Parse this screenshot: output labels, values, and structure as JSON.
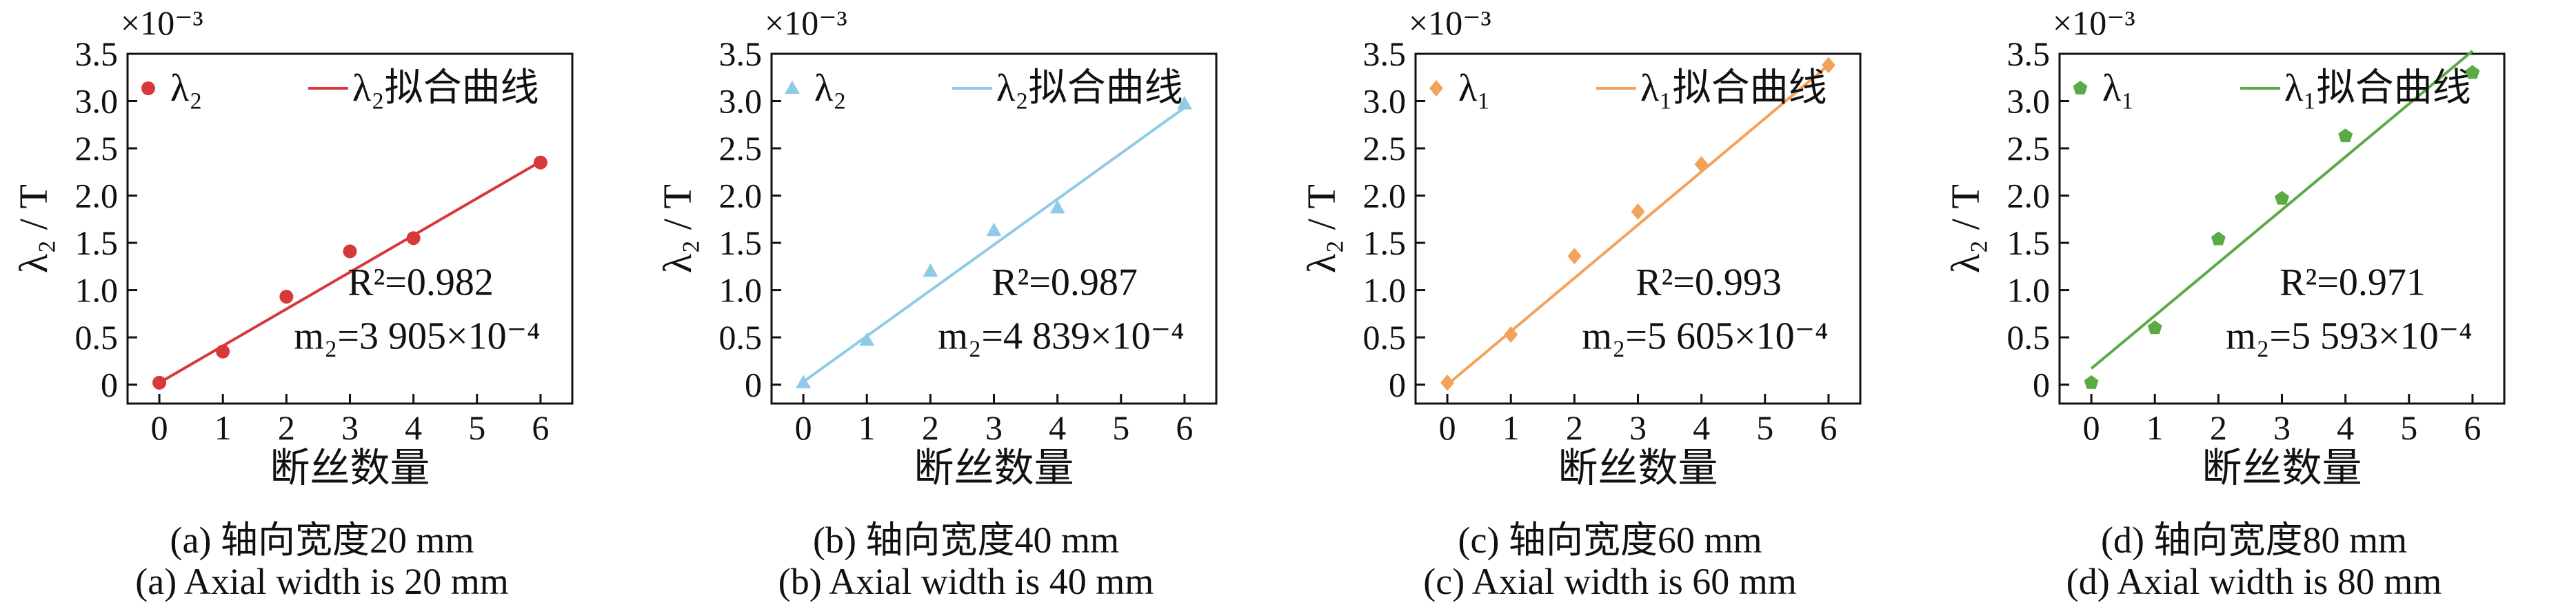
{
  "chart_data": [
    {
      "type": "scatter",
      "panel_id": "a",
      "color": "#d9383a",
      "marker": "circle",
      "x_exponent_label": "×10⁻³",
      "xlabel": "断丝数量",
      "ylabel": "λ₂ / T",
      "xlim": [
        -0.5,
        6.5
      ],
      "ylim": [
        -0.2,
        3.5
      ],
      "xticks": [
        "0",
        "1",
        "2",
        "3",
        "4",
        "5",
        "6"
      ],
      "yticks": [
        "0",
        "0.5",
        "1.0",
        "1.5",
        "2.0",
        "2.5",
        "3.0",
        "3.5"
      ],
      "legend": {
        "point_label": "λ₂",
        "line_label": "λ₂拟合曲线",
        "position": "top"
      },
      "points": {
        "x": [
          0,
          1,
          2,
          3,
          4,
          6
        ],
        "y": [
          0.02,
          0.35,
          0.93,
          1.41,
          1.55,
          2.35
        ]
      },
      "fit_line": {
        "x": [
          0,
          6
        ],
        "y": [
          0.02,
          2.36
        ]
      },
      "annotation_r2": "R²=0.982",
      "annotation_m": "m₂=3 905×10⁻⁴",
      "caption_zh": "(a)  轴向宽度20 mm",
      "caption_en": "(a)  Axial width is 20 mm"
    },
    {
      "type": "scatter",
      "panel_id": "b",
      "color": "#8fcbe6",
      "marker": "triangle",
      "x_exponent_label": "×10⁻³",
      "xlabel": "断丝数量",
      "ylabel": "λ₂ / T",
      "xlim": [
        -0.5,
        6.5
      ],
      "ylim": [
        -0.2,
        3.5
      ],
      "xticks": [
        "0",
        "1",
        "2",
        "3",
        "4",
        "5",
        "6"
      ],
      "yticks": [
        "0",
        "0.5",
        "1.0",
        "1.5",
        "2.0",
        "2.5",
        "3.0",
        "3.5"
      ],
      "legend": {
        "point_label": "λ₂",
        "line_label": "λ₂拟合曲线",
        "position": "top"
      },
      "points": {
        "x": [
          0,
          1,
          2,
          3,
          4,
          6
        ],
        "y": [
          0.02,
          0.47,
          1.2,
          1.63,
          1.87,
          2.97
        ]
      },
      "fit_line": {
        "x": [
          0,
          6
        ],
        "y": [
          0.03,
          2.93
        ]
      },
      "annotation_r2": "R²=0.987",
      "annotation_m": "m₂=4 839×10⁻⁴",
      "caption_zh": "(b)  轴向宽度40 mm",
      "caption_en": "(b)  Axial width is 40 mm"
    },
    {
      "type": "scatter",
      "panel_id": "c",
      "color": "#f4a259",
      "marker": "diamond",
      "x_exponent_label": "×10⁻³",
      "xlabel": "断丝数量",
      "ylabel": "λ₂ / T",
      "xlim": [
        -0.5,
        6.5
      ],
      "ylim": [
        -0.2,
        3.5
      ],
      "xticks": [
        "0",
        "1",
        "2",
        "3",
        "4",
        "5",
        "6"
      ],
      "yticks": [
        "0",
        "0.5",
        "1.0",
        "1.5",
        "2.0",
        "2.5",
        "3.0",
        "3.5"
      ],
      "legend": {
        "point_label": "λ₁",
        "line_label": "λ₁拟合曲线",
        "position": "top"
      },
      "points": {
        "x": [
          0,
          1,
          2,
          3,
          4,
          6
        ],
        "y": [
          0.02,
          0.53,
          1.36,
          1.83,
          2.33,
          3.38
        ]
      },
      "fit_line": {
        "x": [
          0,
          6
        ],
        "y": [
          0.0,
          3.38
        ]
      },
      "annotation_r2": "R²=0.993",
      "annotation_m": "m₂=5 605×10⁻⁴",
      "caption_zh": "(c)  轴向宽度60 mm",
      "caption_en": "(c)  Axial width is 60 mm"
    },
    {
      "type": "scatter",
      "panel_id": "d",
      "color": "#5aaa46",
      "marker": "pentagon",
      "x_exponent_label": "×10⁻³",
      "xlabel": "断丝数量",
      "ylabel": "λ₂ / T",
      "xlim": [
        -0.5,
        6.5
      ],
      "ylim": [
        -0.2,
        3.5
      ],
      "xticks": [
        "0",
        "1",
        "2",
        "3",
        "4",
        "5",
        "6"
      ],
      "yticks": [
        "0",
        "0.5",
        "1.0",
        "1.5",
        "2.0",
        "2.5",
        "3.0",
        "3.5"
      ],
      "legend": {
        "point_label": "λ₁",
        "line_label": "λ₁拟合曲线",
        "position": "top"
      },
      "points": {
        "x": [
          0,
          1,
          2,
          3,
          4,
          6
        ],
        "y": [
          0.02,
          0.6,
          1.54,
          1.97,
          2.63,
          3.3
        ]
      },
      "fit_line": {
        "x": [
          0,
          6
        ],
        "y": [
          0.17,
          3.53
        ]
      },
      "annotation_r2": "R²=0.971",
      "annotation_m": "m₂=5 593×10⁻⁴",
      "caption_zh": "(d)  轴向宽度80 mm",
      "caption_en": "(d)  Axial width is 80 mm"
    }
  ]
}
